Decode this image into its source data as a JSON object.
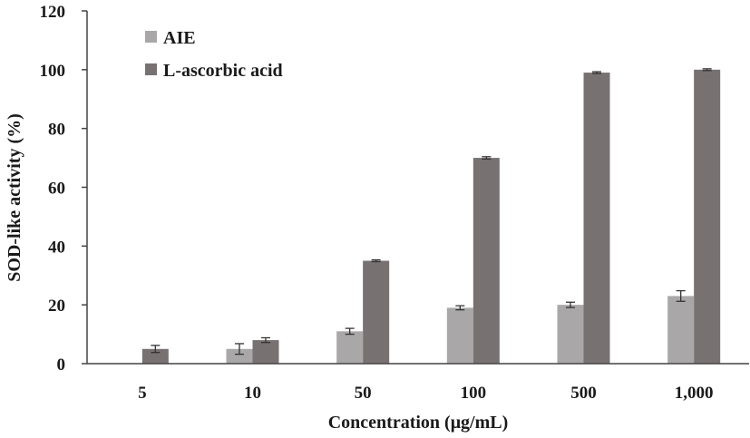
{
  "chart_data": {
    "type": "bar",
    "title": "",
    "xlabel": "Concentration (μg/mL)",
    "ylabel": "SOD-like activity (%)",
    "categories": [
      "5",
      "10",
      "50",
      "100",
      "500",
      "1,000"
    ],
    "ylim": [
      0,
      120
    ],
    "yticks": [
      "0",
      "20",
      "40",
      "60",
      "80",
      "100",
      "120"
    ],
    "grid": false,
    "legend_position": "top-left",
    "series": [
      {
        "name": "AIE",
        "color": "#a9a7a7",
        "values": [
          0,
          5,
          11,
          19,
          20,
          23
        ],
        "errors": [
          0,
          1.8,
          1,
          0.7,
          0.9,
          1.8
        ]
      },
      {
        "name": "L-ascorbic acid",
        "color": "#787172",
        "values": [
          5,
          8,
          35,
          70,
          99,
          100
        ],
        "errors": [
          1.2,
          0.8,
          0.3,
          0.4,
          0.3,
          0.3
        ]
      }
    ]
  }
}
